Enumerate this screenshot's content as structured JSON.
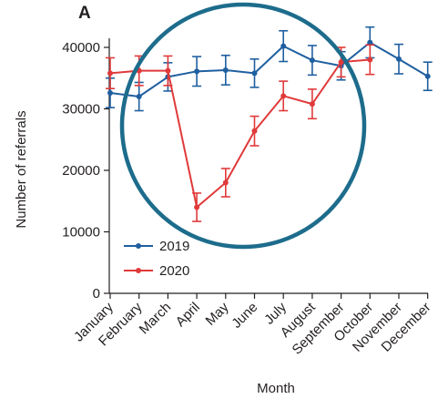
{
  "chart_data": {
    "type": "line",
    "panel_label": "A",
    "xlabel": "Month",
    "ylabel": "Number of referrals",
    "ylim": [
      0,
      40000
    ],
    "yticks": [
      0,
      10000,
      20000,
      30000,
      40000
    ],
    "ytick_labels": [
      "0",
      "10000",
      "20000",
      "30000",
      "40000"
    ],
    "categories": [
      "January",
      "February",
      "March",
      "April",
      "May",
      "June",
      "July",
      "August",
      "September",
      "October",
      "November",
      "December"
    ],
    "legend_position": "bottom-left",
    "series": [
      {
        "name": "2019",
        "color": "#1f5fa0",
        "values": [
          32600,
          32000,
          35200,
          36100,
          36300,
          35800,
          40200,
          37900,
          37000,
          40800,
          38100,
          35300
        ],
        "errors": [
          2400,
          2300,
          2300,
          2400,
          2400,
          2300,
          2500,
          2400,
          2300,
          2500,
          2400,
          2300
        ]
      },
      {
        "name": "2020",
        "color": "#e03a3a",
        "values": [
          35800,
          36200,
          36200,
          14000,
          18000,
          26400,
          32100,
          30800,
          37600,
          38000,
          null,
          null
        ],
        "errors": [
          2500,
          2400,
          2400,
          2300,
          2300,
          2400,
          2400,
          2400,
          2400,
          2400,
          null,
          null
        ]
      }
    ],
    "annotation": {
      "shape": "circle",
      "color": "#1d6c8c"
    }
  }
}
